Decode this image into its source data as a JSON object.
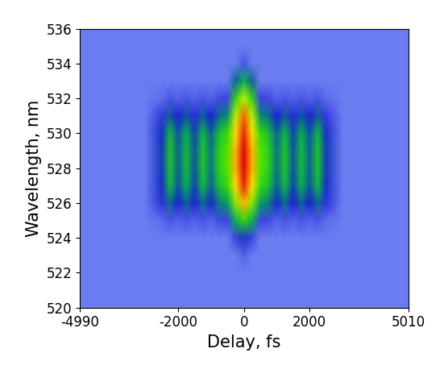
{
  "chart_data": {
    "type": "heatmap",
    "x_label": "Delay, fs",
    "y_label": "Wavelength, nm",
    "xlim": [
      -4990,
      5010
    ],
    "xticks": [
      -4990,
      -2000,
      0,
      2000,
      5010
    ],
    "ylim": [
      520,
      536
    ],
    "yticks": [
      520,
      522,
      524,
      526,
      528,
      530,
      532,
      534,
      536
    ],
    "x": [
      -4990,
      -3000,
      -2500,
      -2250,
      -2000,
      -1750,
      -1500,
      -1250,
      -1000,
      -750,
      -500,
      -250,
      0,
      250,
      500,
      750,
      1000,
      1250,
      1500,
      1750,
      2000,
      2250,
      2500,
      3000,
      5010
    ],
    "y": [
      520,
      521,
      522,
      523,
      524,
      525,
      526,
      527,
      528,
      529,
      530,
      531,
      532,
      533,
      534,
      535,
      536
    ],
    "cells": [
      [
        0.05,
        0.05,
        0.05,
        0.05,
        0.05,
        0.05,
        0.05,
        0.05,
        0.05,
        0.05,
        0.05,
        0.05,
        0.05,
        0.05,
        0.05,
        0.05,
        0.05,
        0.05,
        0.05,
        0.05,
        0.05,
        0.05,
        0.05,
        0.05,
        0.05
      ],
      [
        0.05,
        0.05,
        0.05,
        0.05,
        0.05,
        0.05,
        0.05,
        0.05,
        0.05,
        0.05,
        0.05,
        0.05,
        0.05,
        0.05,
        0.05,
        0.05,
        0.05,
        0.05,
        0.05,
        0.05,
        0.05,
        0.05,
        0.05,
        0.05,
        0.05
      ],
      [
        0.05,
        0.05,
        0.05,
        0.05,
        0.05,
        0.05,
        0.05,
        0.05,
        0.05,
        0.05,
        0.05,
        0.05,
        0.05,
        0.05,
        0.05,
        0.05,
        0.05,
        0.05,
        0.05,
        0.05,
        0.05,
        0.05,
        0.05,
        0.05,
        0.05
      ],
      [
        0.05,
        0.05,
        0.05,
        0.05,
        0.05,
        0.05,
        0.05,
        0.05,
        0.05,
        0.05,
        0.05,
        0.05,
        0.08,
        0.05,
        0.05,
        0.05,
        0.05,
        0.05,
        0.05,
        0.05,
        0.05,
        0.05,
        0.05,
        0.05,
        0.05
      ],
      [
        0.05,
        0.05,
        0.05,
        0.05,
        0.05,
        0.05,
        0.05,
        0.05,
        0.05,
        0.05,
        0.05,
        0.12,
        0.2,
        0.12,
        0.05,
        0.05,
        0.05,
        0.05,
        0.05,
        0.05,
        0.05,
        0.05,
        0.05,
        0.05,
        0.05
      ],
      [
        0.05,
        0.05,
        0.07,
        0.1,
        0.08,
        0.1,
        0.08,
        0.1,
        0.08,
        0.11,
        0.12,
        0.35,
        0.45,
        0.35,
        0.12,
        0.11,
        0.08,
        0.1,
        0.08,
        0.1,
        0.08,
        0.1,
        0.07,
        0.05,
        0.05
      ],
      [
        0.05,
        0.05,
        0.14,
        0.26,
        0.17,
        0.25,
        0.16,
        0.26,
        0.18,
        0.28,
        0.32,
        0.55,
        0.75,
        0.55,
        0.32,
        0.28,
        0.18,
        0.26,
        0.16,
        0.25,
        0.17,
        0.26,
        0.14,
        0.05,
        0.05
      ],
      [
        0.05,
        0.05,
        0.19,
        0.37,
        0.23,
        0.35,
        0.21,
        0.37,
        0.25,
        0.39,
        0.46,
        0.7,
        0.95,
        0.7,
        0.46,
        0.39,
        0.25,
        0.37,
        0.21,
        0.35,
        0.23,
        0.37,
        0.19,
        0.05,
        0.05
      ],
      [
        0.05,
        0.05,
        0.2,
        0.4,
        0.25,
        0.38,
        0.23,
        0.4,
        0.27,
        0.43,
        0.5,
        0.75,
        1.0,
        0.75,
        0.5,
        0.43,
        0.27,
        0.4,
        0.23,
        0.38,
        0.25,
        0.4,
        0.2,
        0.05,
        0.05
      ],
      [
        0.05,
        0.05,
        0.2,
        0.4,
        0.25,
        0.38,
        0.23,
        0.4,
        0.27,
        0.43,
        0.5,
        0.75,
        1.0,
        0.75,
        0.5,
        0.43,
        0.27,
        0.4,
        0.23,
        0.38,
        0.25,
        0.4,
        0.2,
        0.05,
        0.05
      ],
      [
        0.05,
        0.05,
        0.19,
        0.37,
        0.23,
        0.35,
        0.21,
        0.37,
        0.25,
        0.39,
        0.46,
        0.7,
        0.95,
        0.7,
        0.46,
        0.39,
        0.25,
        0.37,
        0.21,
        0.35,
        0.23,
        0.37,
        0.19,
        0.05,
        0.05
      ],
      [
        0.05,
        0.05,
        0.13,
        0.24,
        0.16,
        0.23,
        0.15,
        0.24,
        0.17,
        0.26,
        0.3,
        0.6,
        0.85,
        0.6,
        0.3,
        0.26,
        0.17,
        0.24,
        0.15,
        0.23,
        0.16,
        0.24,
        0.13,
        0.05,
        0.05
      ],
      [
        0.05,
        0.05,
        0.07,
        0.1,
        0.08,
        0.1,
        0.08,
        0.1,
        0.08,
        0.11,
        0.12,
        0.45,
        0.6,
        0.45,
        0.12,
        0.11,
        0.08,
        0.1,
        0.08,
        0.1,
        0.08,
        0.1,
        0.07,
        0.05,
        0.05
      ],
      [
        0.05,
        0.05,
        0.05,
        0.05,
        0.05,
        0.05,
        0.05,
        0.05,
        0.05,
        0.05,
        0.05,
        0.25,
        0.35,
        0.25,
        0.05,
        0.05,
        0.05,
        0.05,
        0.05,
        0.05,
        0.05,
        0.05,
        0.05,
        0.05,
        0.05
      ],
      [
        0.05,
        0.05,
        0.05,
        0.05,
        0.05,
        0.05,
        0.05,
        0.05,
        0.05,
        0.05,
        0.05,
        0.05,
        0.1,
        0.05,
        0.05,
        0.05,
        0.05,
        0.05,
        0.05,
        0.05,
        0.05,
        0.05,
        0.05,
        0.05,
        0.05
      ],
      [
        0.05,
        0.05,
        0.05,
        0.05,
        0.05,
        0.05,
        0.05,
        0.05,
        0.05,
        0.05,
        0.05,
        0.05,
        0.05,
        0.05,
        0.05,
        0.05,
        0.05,
        0.05,
        0.05,
        0.05,
        0.05,
        0.05,
        0.05,
        0.05,
        0.05
      ],
      [
        0.05,
        0.05,
        0.05,
        0.05,
        0.05,
        0.05,
        0.05,
        0.05,
        0.05,
        0.05,
        0.05,
        0.05,
        0.05,
        0.05,
        0.05,
        0.05,
        0.05,
        0.05,
        0.05,
        0.05,
        0.05,
        0.05,
        0.05,
        0.05,
        0.05
      ]
    ]
  }
}
